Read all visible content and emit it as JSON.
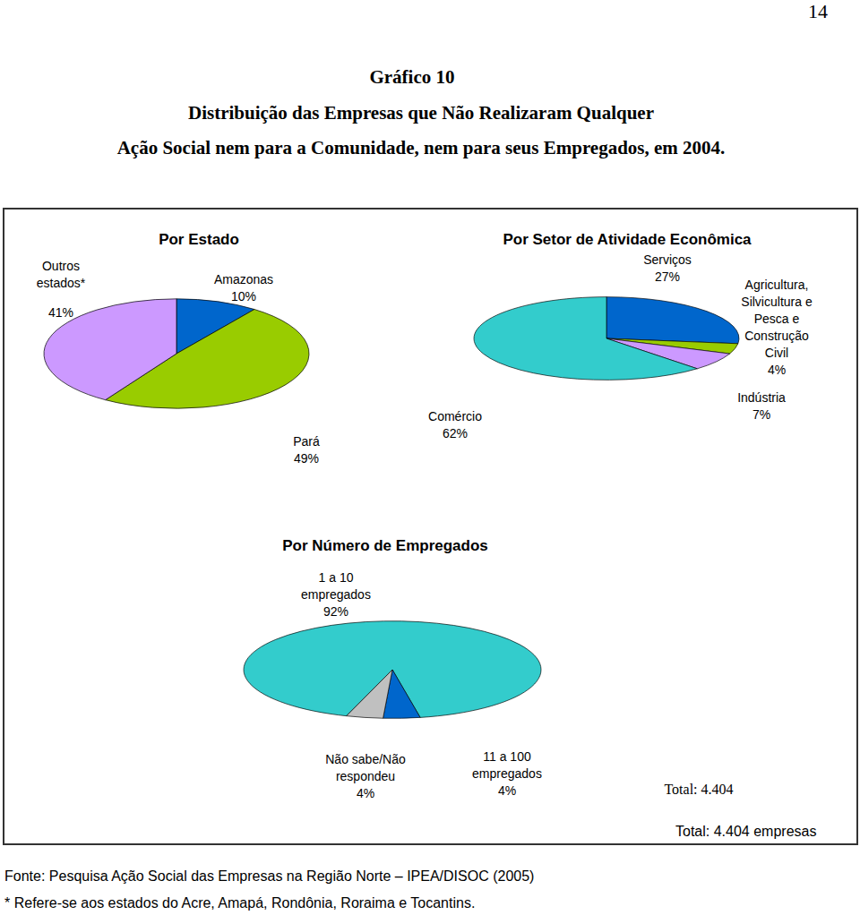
{
  "page": "14",
  "heading": "Gráfico 10",
  "title_lines": [
    "Distribuição das Empresas que Não Realizaram Qualquer",
    "Ação Social nem para a Comunidade, nem para seus Empregados, em 2004."
  ],
  "box_note": "Total: 4.404 empresas",
  "source": "Fonte: Pesquisa Ação Social das Empresas na Região Norte – IPEA/DISOC (2005)",
  "footnote": "* Refere-se aos estados do Acre, Amapá, Rondônia, Roraima e Tocantins.",
  "chart_data": [
    {
      "type": "pie",
      "title": "Por Estado",
      "categories": [
        "Amazonas",
        "Pará",
        "Outros estados*"
      ],
      "values": [
        10,
        49,
        41
      ],
      "value_labels": [
        "10%",
        "49%",
        "41%"
      ],
      "colors": [
        "#0066cc",
        "#99cc00",
        "#cc99ff"
      ],
      "data_labels": true
    },
    {
      "type": "pie",
      "title": "Por Setor de Atividade Econômica",
      "categories": [
        "Serviços",
        "Agricultura, Silvicultura e Pesca e Construção Civil",
        "Indústria",
        "Comércio"
      ],
      "values": [
        27,
        4,
        7,
        62
      ],
      "value_labels": [
        "27%",
        "4%",
        "7%",
        "62%"
      ],
      "colors": [
        "#0066cc",
        "#99cc00",
        "#cc99ff",
        "#33cccc"
      ],
      "data_labels": true
    },
    {
      "type": "pie",
      "title": "Por Número de Empregados",
      "categories": [
        "1 a 10 empregados",
        "11 a 100 empregados",
        "Não sabe/Não respondeu"
      ],
      "values": [
        92,
        4,
        4
      ],
      "value_labels": [
        "92%",
        "4%",
        "4%"
      ],
      "colors": [
        "#33cccc",
        "#0066cc",
        "#c0c0c0"
      ],
      "data_labels": true,
      "annotation": "Total: 4.404"
    }
  ]
}
